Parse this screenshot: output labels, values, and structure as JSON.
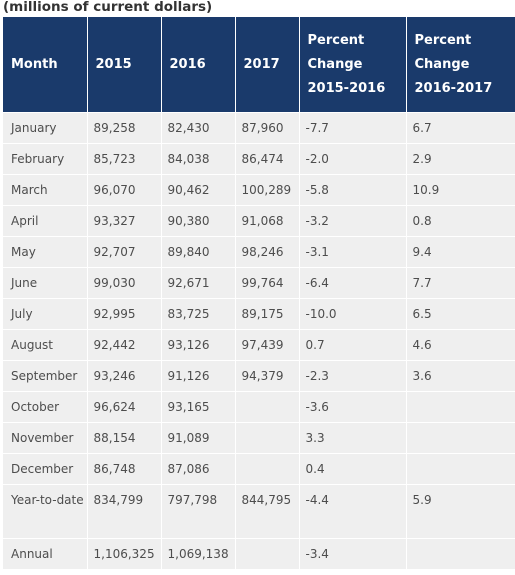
{
  "caption": "(millions of current dollars)",
  "headers": {
    "month": "Month",
    "y2015": "2015",
    "y2016": "2016",
    "y2017": "2017",
    "pc1_line1": "Percent",
    "pc1_line2": "Change",
    "pc1_line3": "2015-2016",
    "pc2_line1": "Percent",
    "pc2_line2": "Change",
    "pc2_line3": "2016-2017"
  },
  "rows": [
    {
      "label": "January",
      "y2015": "89,258",
      "y2016": "82,430",
      "y2017": "87,960",
      "pc1": "-7.7",
      "pc2": "6.7"
    },
    {
      "label": "February",
      "y2015": "85,723",
      "y2016": "84,038",
      "y2017": "86,474",
      "pc1": "-2.0",
      "pc2": "2.9"
    },
    {
      "label": "March",
      "y2015": "96,070",
      "y2016": "90,462",
      "y2017": "100,289",
      "pc1": "-5.8",
      "pc2": "10.9"
    },
    {
      "label": "April",
      "y2015": "93,327",
      "y2016": "90,380",
      "y2017": "91,068",
      "pc1": "-3.2",
      "pc2": "0.8"
    },
    {
      "label": "May",
      "y2015": "92,707",
      "y2016": "89,840",
      "y2017": "98,246",
      "pc1": "-3.1",
      "pc2": "9.4"
    },
    {
      "label": "June",
      "y2015": "99,030",
      "y2016": "92,671",
      "y2017": "99,764",
      "pc1": "-6.4",
      "pc2": "7.7"
    },
    {
      "label": "July",
      "y2015": "92,995",
      "y2016": "83,725",
      "y2017": "89,175",
      "pc1": "-10.0",
      "pc2": "6.5"
    },
    {
      "label": "August",
      "y2015": "92,442",
      "y2016": "93,126",
      "y2017": "97,439",
      "pc1": "0.7",
      "pc2": "4.6"
    },
    {
      "label": "September",
      "y2015": "93,246",
      "y2016": "91,126",
      "y2017": "94,379",
      "pc1": "-2.3",
      "pc2": "3.6"
    },
    {
      "label": "October",
      "y2015": "96,624",
      "y2016": "93,165",
      "y2017": "",
      "pc1": "-3.6",
      "pc2": ""
    },
    {
      "label": "November",
      "y2015": "88,154",
      "y2016": "91,089",
      "y2017": "",
      "pc1": "3.3",
      "pc2": ""
    },
    {
      "label": "December",
      "y2015": "86,748",
      "y2016": "87,086",
      "y2017": "",
      "pc1": "0.4",
      "pc2": ""
    },
    {
      "label": "Year-to-date",
      "y2015": "834,799",
      "y2016": "797,798",
      "y2017": "844,795",
      "pc1": "-4.4",
      "pc2": "5.9"
    },
    {
      "label": "Annual",
      "y2015": "1,106,325",
      "y2016": "1,069,138",
      "y2017": "",
      "pc1": "-3.4",
      "pc2": ""
    }
  ]
}
